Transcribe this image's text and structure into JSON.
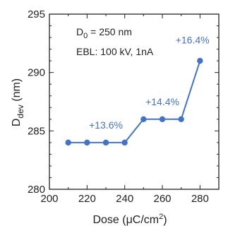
{
  "chart_data": {
    "type": "line",
    "x": [
      210,
      220,
      230,
      240,
      250,
      260,
      270,
      280
    ],
    "y": [
      284,
      284,
      284,
      284,
      286,
      286,
      286,
      291
    ],
    "xlim": [
      200,
      290
    ],
    "ylim": [
      280,
      295
    ],
    "xticks": [
      200,
      220,
      240,
      260,
      280
    ],
    "yticks": [
      280,
      285,
      290,
      295
    ],
    "xlabel": {
      "text": "Dose (",
      "unit_mu": "μ",
      "unit_base": "C/cm",
      "unit_sup": "2",
      "close": ")"
    },
    "ylabel": {
      "base": "D",
      "sub": "dev",
      "unit": " (nm)"
    },
    "annotations": [
      {
        "base": "D",
        "sub": "0",
        "rest": " = 250 nm"
      },
      {
        "text": "EBL: 100 kV, 1nA"
      }
    ],
    "data_labels": [
      {
        "text": "+13.6%",
        "x": 230,
        "y": 285.2
      },
      {
        "text": "+14.4%",
        "x": 260,
        "y": 287.2
      },
      {
        "text": "+16.4%",
        "x": 276,
        "y": 292.5
      }
    ],
    "grid": false,
    "legend": "none",
    "color": "#4472c4"
  }
}
